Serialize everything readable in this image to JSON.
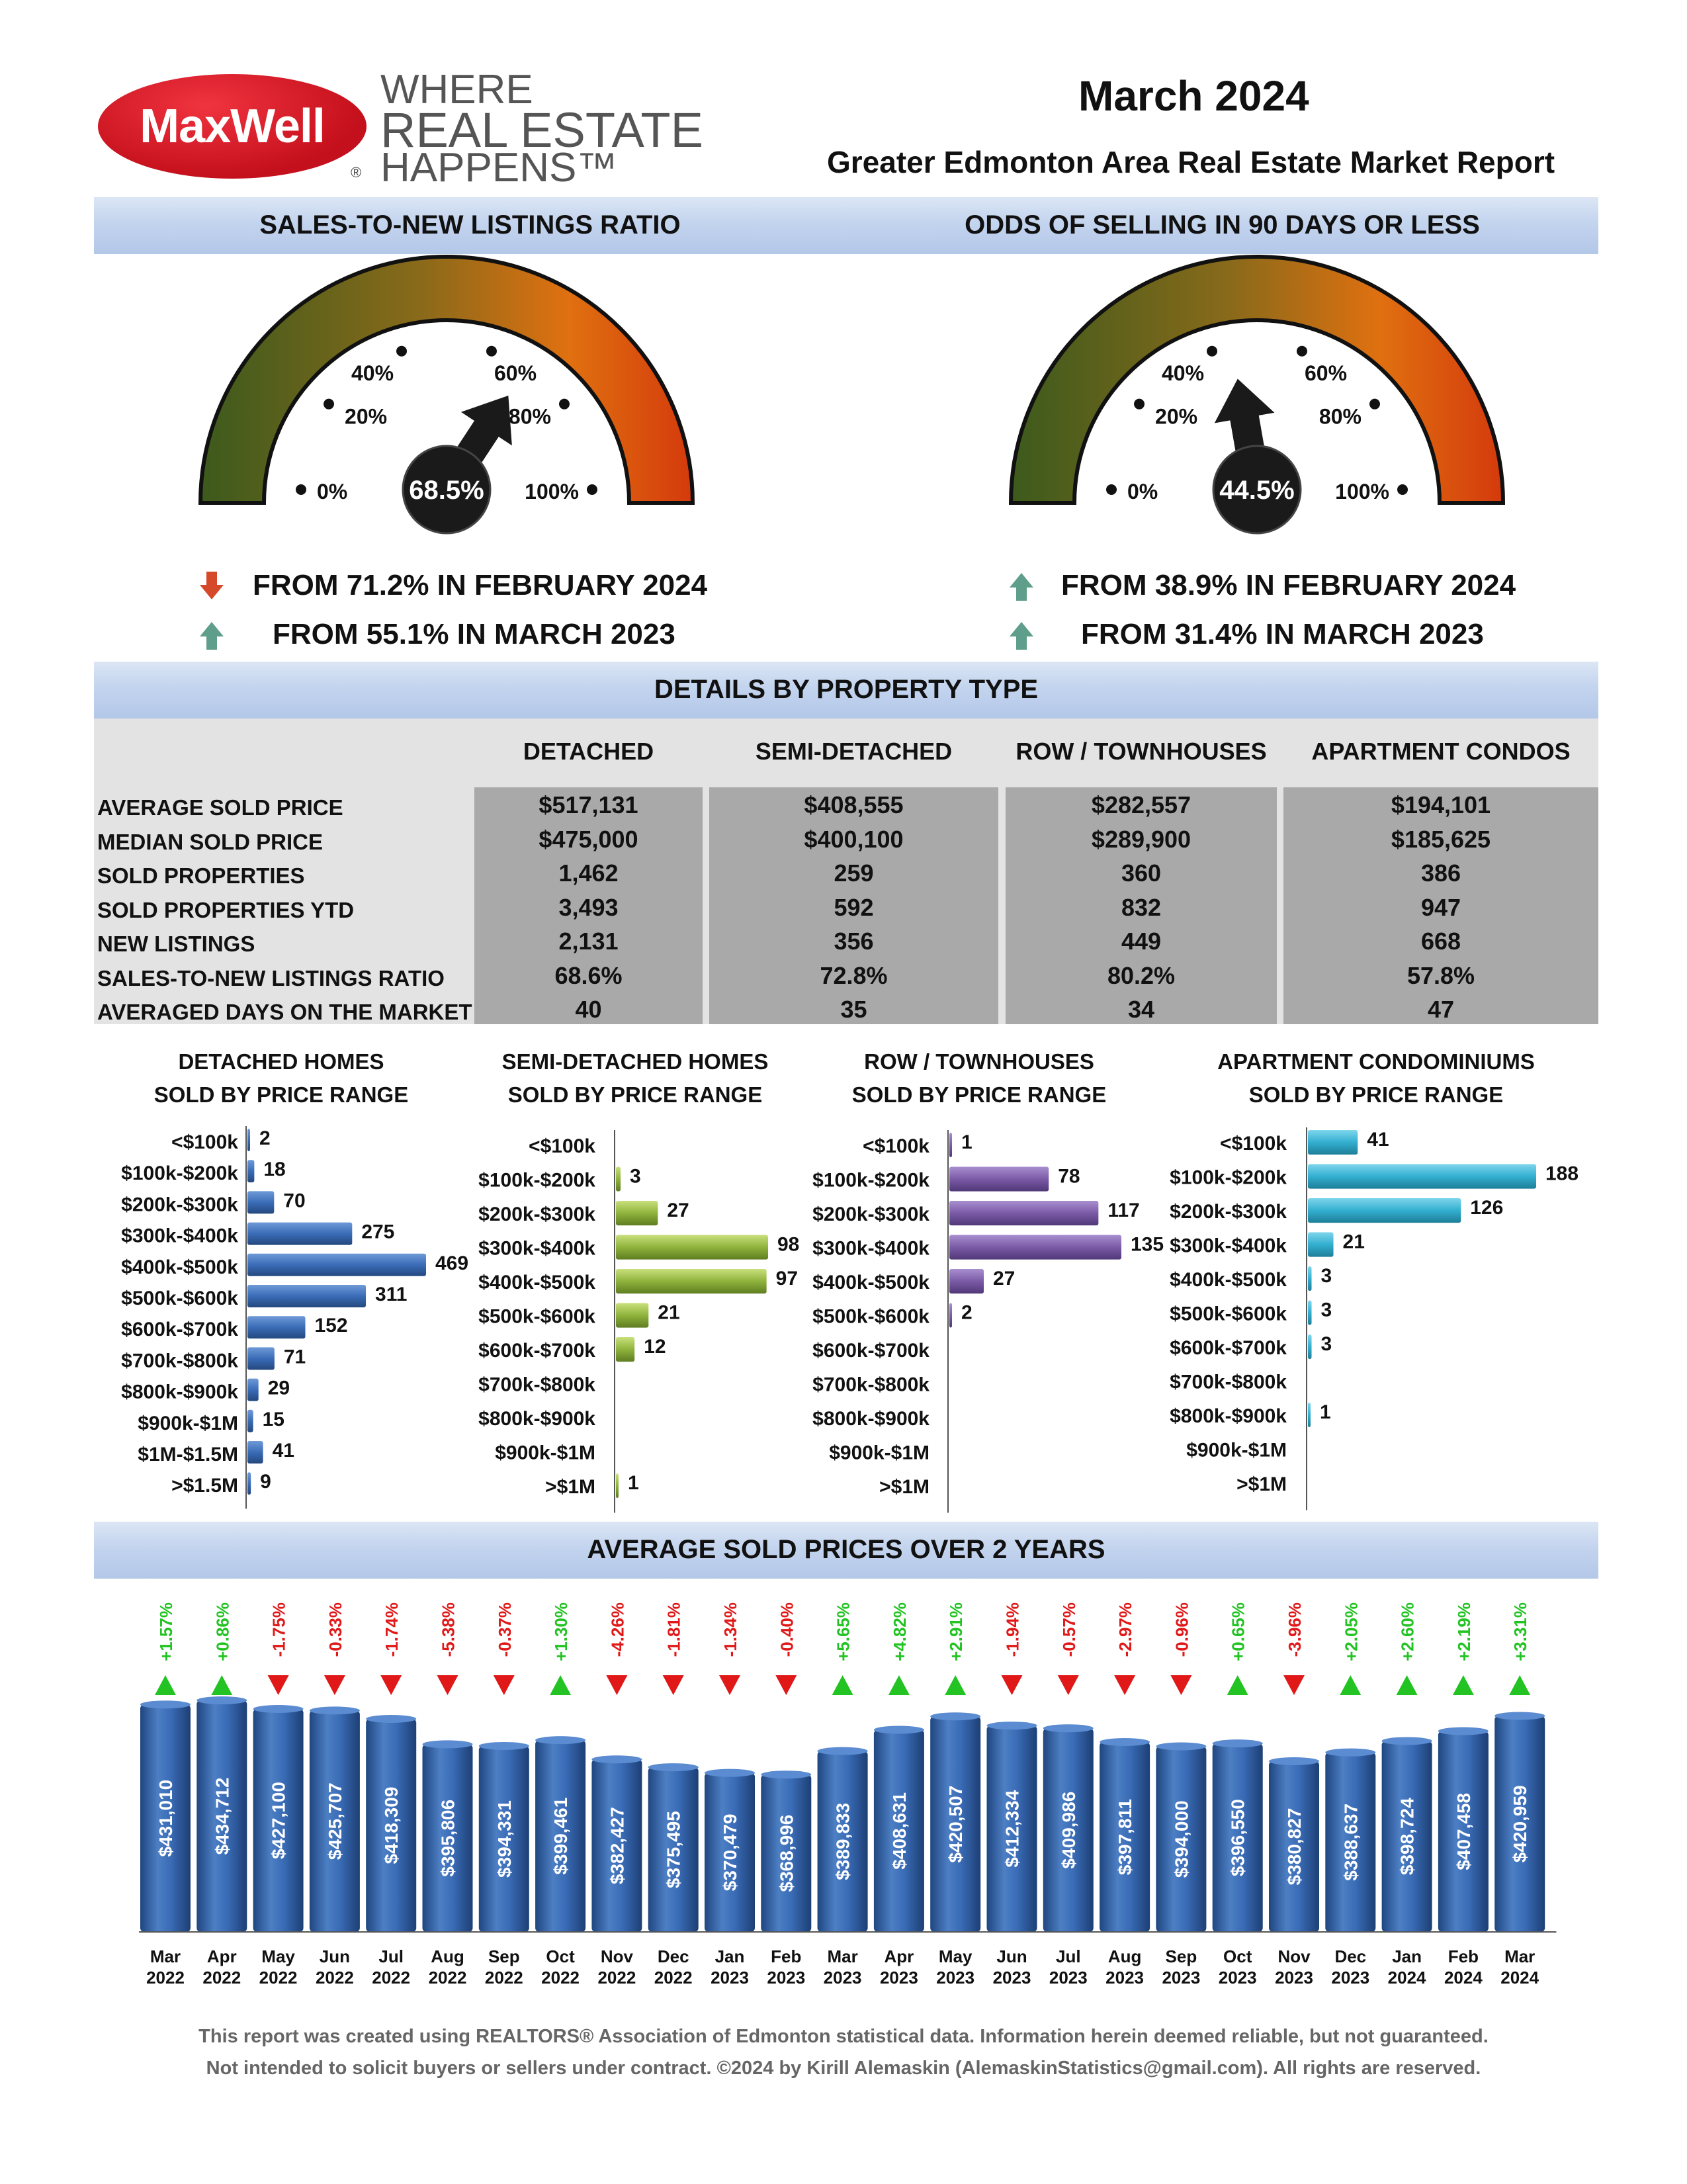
{
  "header": {
    "logo": "MaxWell",
    "logo_reg": "®",
    "tagline": [
      "WHERE",
      "REAL ESTATE",
      "HAPPENS™"
    ],
    "month": "March 2024",
    "subtitle": "Greater Edmonton Area Real Estate Market Report"
  },
  "gauges": {
    "left": {
      "title": "SALES-TO-NEW LISTINGS RATIO",
      "value_label": "68.5%",
      "value": 68.5,
      "ticks": [
        "0%",
        "20%",
        "40%",
        "60%",
        "80%",
        "100%"
      ],
      "changes": [
        {
          "direction": "down",
          "text": "FROM 71.2% IN FEBRUARY 2024"
        },
        {
          "direction": "up",
          "text": "FROM 55.1% IN MARCH 2023"
        }
      ]
    },
    "right": {
      "title": "ODDS OF SELLING IN 90 DAYS OR LESS",
      "value_label": "44.5%",
      "value": 44.5,
      "ticks": [
        "0%",
        "20%",
        "40%",
        "60%",
        "80%",
        "100%"
      ],
      "changes": [
        {
          "direction": "up",
          "text": "FROM 38.9% IN FEBRUARY 2024"
        },
        {
          "direction": "up",
          "text": "FROM 31.4% IN MARCH 2023"
        }
      ]
    },
    "colors": {
      "low": "#3c5a1c",
      "high": "#d84410",
      "arrow": "#1a1a1a",
      "up": "#5f9e8a",
      "down": "#d5482a"
    }
  },
  "details": {
    "title": "DETAILS BY PROPERTY TYPE",
    "columns": [
      "DETACHED",
      "SEMI-DETACHED",
      "ROW / TOWNHOUSES",
      "APARTMENT CONDOS"
    ],
    "rows": [
      {
        "label": "AVERAGE SOLD PRICE",
        "values": [
          "$517,131",
          "$408,555",
          "$282,557",
          "$194,101"
        ]
      },
      {
        "label": "MEDIAN SOLD PRICE",
        "values": [
          "$475,000",
          "$400,100",
          "$289,900",
          "$185,625"
        ]
      },
      {
        "label": "SOLD PROPERTIES",
        "values": [
          "1,462",
          "259",
          "360",
          "386"
        ]
      },
      {
        "label": "SOLD PROPERTIES YTD",
        "values": [
          "3,493",
          "592",
          "832",
          "947"
        ]
      },
      {
        "label": "NEW LISTINGS",
        "values": [
          "2,131",
          "356",
          "449",
          "668"
        ]
      },
      {
        "label": "SALES-TO-NEW LISTINGS RATIO",
        "values": [
          "68.6%",
          "72.8%",
          "80.2%",
          "57.8%"
        ]
      },
      {
        "label": "AVERAGED DAYS ON THE MARKET",
        "values": [
          "40",
          "35",
          "34",
          "47"
        ]
      }
    ]
  },
  "chart_data": [
    {
      "type": "bar",
      "orientation": "horizontal",
      "title": [
        "DETACHED HOMES",
        "SOLD BY PRICE RANGE"
      ],
      "categories": [
        "<$100k",
        "$100k-$200k",
        "$200k-$300k",
        "$300k-$400k",
        "$400k-$500k",
        "$500k-$600k",
        "$600k-$700k",
        "$700k-$800k",
        "$800k-$900k",
        "$900k-$1M",
        "$1M-$1.5M",
        ">$1.5M"
      ],
      "values": [
        2,
        18,
        70,
        275,
        469,
        311,
        152,
        71,
        29,
        15,
        41,
        9
      ],
      "color": "#3a6cb7"
    },
    {
      "type": "bar",
      "orientation": "horizontal",
      "title": [
        "SEMI-DETACHED HOMES",
        "SOLD BY PRICE RANGE"
      ],
      "categories": [
        "<$100k",
        "$100k-$200k",
        "$200k-$300k",
        "$300k-$400k",
        "$400k-$500k",
        "$500k-$600k",
        "$600k-$700k",
        "$700k-$800k",
        "$800k-$900k",
        "$900k-$1M",
        ">$1M"
      ],
      "values": [
        null,
        3,
        27,
        98,
        97,
        21,
        12,
        null,
        null,
        null,
        1
      ],
      "color": "#8fb33c"
    },
    {
      "type": "bar",
      "orientation": "horizontal",
      "title": [
        "ROW / TOWNHOUSES",
        "SOLD BY PRICE RANGE"
      ],
      "categories": [
        "<$100k",
        "$100k-$200k",
        "$200k-$300k",
        "$300k-$400k",
        "$400k-$500k",
        "$500k-$600k",
        "$600k-$700k",
        "$700k-$800k",
        "$800k-$900k",
        "$900k-$1M",
        ">$1M"
      ],
      "values": [
        1,
        78,
        117,
        135,
        27,
        2,
        null,
        null,
        null,
        null,
        null
      ],
      "color": "#7b5aa6"
    },
    {
      "type": "bar",
      "orientation": "horizontal",
      "title": [
        "APARTMENT CONDOMINIUMS",
        "SOLD BY PRICE RANGE"
      ],
      "categories": [
        "<$100k",
        "$100k-$200k",
        "$200k-$300k",
        "$300k-$400k",
        "$400k-$500k",
        "$500k-$600k",
        "$600k-$700k",
        "$700k-$800k",
        "$800k-$900k",
        "$900k-$1M",
        ">$1M"
      ],
      "values": [
        41,
        188,
        126,
        21,
        3,
        3,
        3,
        null,
        1,
        null,
        null
      ],
      "color": "#33afd0"
    },
    {
      "type": "bar",
      "title": "AVERAGE SOLD PRICES OVER 2 YEARS",
      "categories": [
        [
          "Mar",
          "2022"
        ],
        [
          "Apr",
          "2022"
        ],
        [
          "May",
          "2022"
        ],
        [
          "Jun",
          "2022"
        ],
        [
          "Jul",
          "2022"
        ],
        [
          "Aug",
          "2022"
        ],
        [
          "Sep",
          "2022"
        ],
        [
          "Oct",
          "2022"
        ],
        [
          "Nov",
          "2022"
        ],
        [
          "Dec",
          "2022"
        ],
        [
          "Jan",
          "2023"
        ],
        [
          "Feb",
          "2023"
        ],
        [
          "Mar",
          "2023"
        ],
        [
          "Apr",
          "2023"
        ],
        [
          "May",
          "2023"
        ],
        [
          "Jun",
          "2023"
        ],
        [
          "Jul",
          "2023"
        ],
        [
          "Aug",
          "2023"
        ],
        [
          "Sep",
          "2023"
        ],
        [
          "Oct",
          "2023"
        ],
        [
          "Nov",
          "2023"
        ],
        [
          "Dec",
          "2023"
        ],
        [
          "Jan",
          "2024"
        ],
        [
          "Feb",
          "2024"
        ],
        [
          "Mar",
          "2024"
        ]
      ],
      "values": [
        431010,
        434712,
        427100,
        425707,
        418309,
        395806,
        394331,
        399461,
        382427,
        375495,
        370479,
        368996,
        389833,
        408631,
        420507,
        412334,
        409986,
        397811,
        394000,
        396550,
        380827,
        388637,
        398724,
        407458,
        420959
      ],
      "value_labels": [
        "$431,010",
        "$434,712",
        "$427,100",
        "$425,707",
        "$418,309",
        "$395,806",
        "$394,331",
        "$399,461",
        "$382,427",
        "$375,495",
        "$370,479",
        "$368,996",
        "$389,833",
        "$408,631",
        "$420,507",
        "$412,334",
        "$409,986",
        "$397,811",
        "$394,000",
        "$396,550",
        "$380,827",
        "$388,637",
        "$398,724",
        "$407,458",
        "$420,959"
      ],
      "changes": [
        "+1.57%",
        "+0.86%",
        "-1.75%",
        "-0.33%",
        "-1.74%",
        "-5.38%",
        "-0.37%",
        "+1.30%",
        "-4.26%",
        "-1.81%",
        "-1.34%",
        "-0.40%",
        "+5.65%",
        "+4.82%",
        "+2.91%",
        "-1.94%",
        "-0.57%",
        "-2.97%",
        "-0.96%",
        "+0.65%",
        "-3.96%",
        "+2.05%",
        "+2.60%",
        "+2.19%",
        "+3.31%"
      ],
      "color": "#2f5f9e",
      "up_color": "#22c322",
      "down_color": "#e01818"
    }
  ],
  "footer": [
    "This report was created using REALTORS® Association of Edmonton statistical data. Information herein deemed reliable, but not guaranteed.",
    "Not intended to solicit buyers or sellers under contract. ©2024 by Kirill Alemaskin (AlemaskinStatistics@gmail.com). All rights are reserved."
  ]
}
